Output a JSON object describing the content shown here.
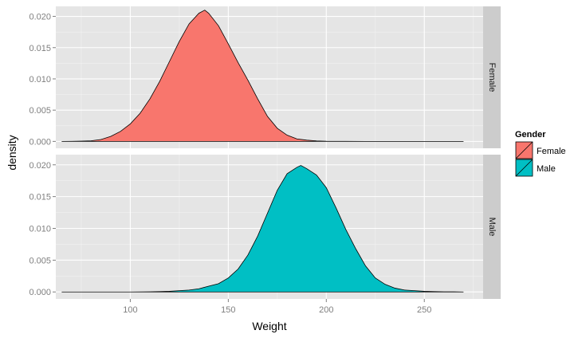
{
  "chart_data": {
    "type": "area",
    "subtype": "faceted density",
    "xlabel": "Weight",
    "ylabel": "density",
    "xlim": [
      62,
      280
    ],
    "ylim": [
      -0.0011,
      0.0216
    ],
    "x_ticks": [
      100,
      150,
      200,
      250
    ],
    "x_tick_labels": [
      "100",
      "150",
      "200",
      "250"
    ],
    "y_ticks": [
      0,
      0.005,
      0.01,
      0.015,
      0.02
    ],
    "y_tick_labels": [
      "0.000",
      "0.005",
      "0.010",
      "0.015",
      "0.020"
    ],
    "grid": true,
    "legend": {
      "title": "Gender",
      "position": "right",
      "entries": [
        {
          "label": "Female",
          "color": "#F8766D"
        },
        {
          "label": "Male",
          "color": "#00BFC4"
        }
      ]
    },
    "facets": [
      {
        "strip": "Female",
        "fill": "#F8766D",
        "x": [
          65,
          70,
          75,
          80,
          85,
          90,
          95,
          100,
          105,
          110,
          115,
          120,
          125,
          130,
          135,
          138,
          140,
          145,
          150,
          155,
          160,
          165,
          170,
          175,
          180,
          185,
          190,
          195,
          200,
          210,
          220,
          230,
          240,
          250,
          260,
          270
        ],
        "y": [
          0,
          2e-05,
          5e-05,
          0.0001,
          0.0003,
          0.0008,
          0.0016,
          0.0028,
          0.0045,
          0.0068,
          0.0096,
          0.0128,
          0.016,
          0.0188,
          0.0205,
          0.021,
          0.0205,
          0.0185,
          0.0156,
          0.0126,
          0.0098,
          0.0068,
          0.004,
          0.0021,
          0.001,
          0.0004,
          0.0002,
          8e-05,
          3e-05,
          1e-05,
          0,
          0,
          0,
          0,
          0,
          0
        ]
      },
      {
        "strip": "Male",
        "fill": "#00BFC4",
        "x": [
          65,
          100,
          110,
          115,
          120,
          125,
          130,
          135,
          140,
          145,
          150,
          155,
          160,
          165,
          170,
          175,
          180,
          185,
          187,
          190,
          195,
          200,
          205,
          210,
          215,
          220,
          225,
          230,
          235,
          240,
          245,
          250,
          255,
          260,
          265,
          270
        ],
        "y": [
          0,
          0,
          2e-05,
          5e-05,
          0.0001,
          0.0002,
          0.0003,
          0.0005,
          0.0009,
          0.0013,
          0.0022,
          0.0036,
          0.0058,
          0.0088,
          0.0124,
          0.016,
          0.0186,
          0.0196,
          0.0199,
          0.0194,
          0.0184,
          0.0164,
          0.0132,
          0.0098,
          0.0068,
          0.0041,
          0.0022,
          0.0012,
          0.0006,
          0.0003,
          0.0002,
          0.0001,
          5e-05,
          3e-05,
          2e-05,
          0
        ]
      }
    ]
  }
}
